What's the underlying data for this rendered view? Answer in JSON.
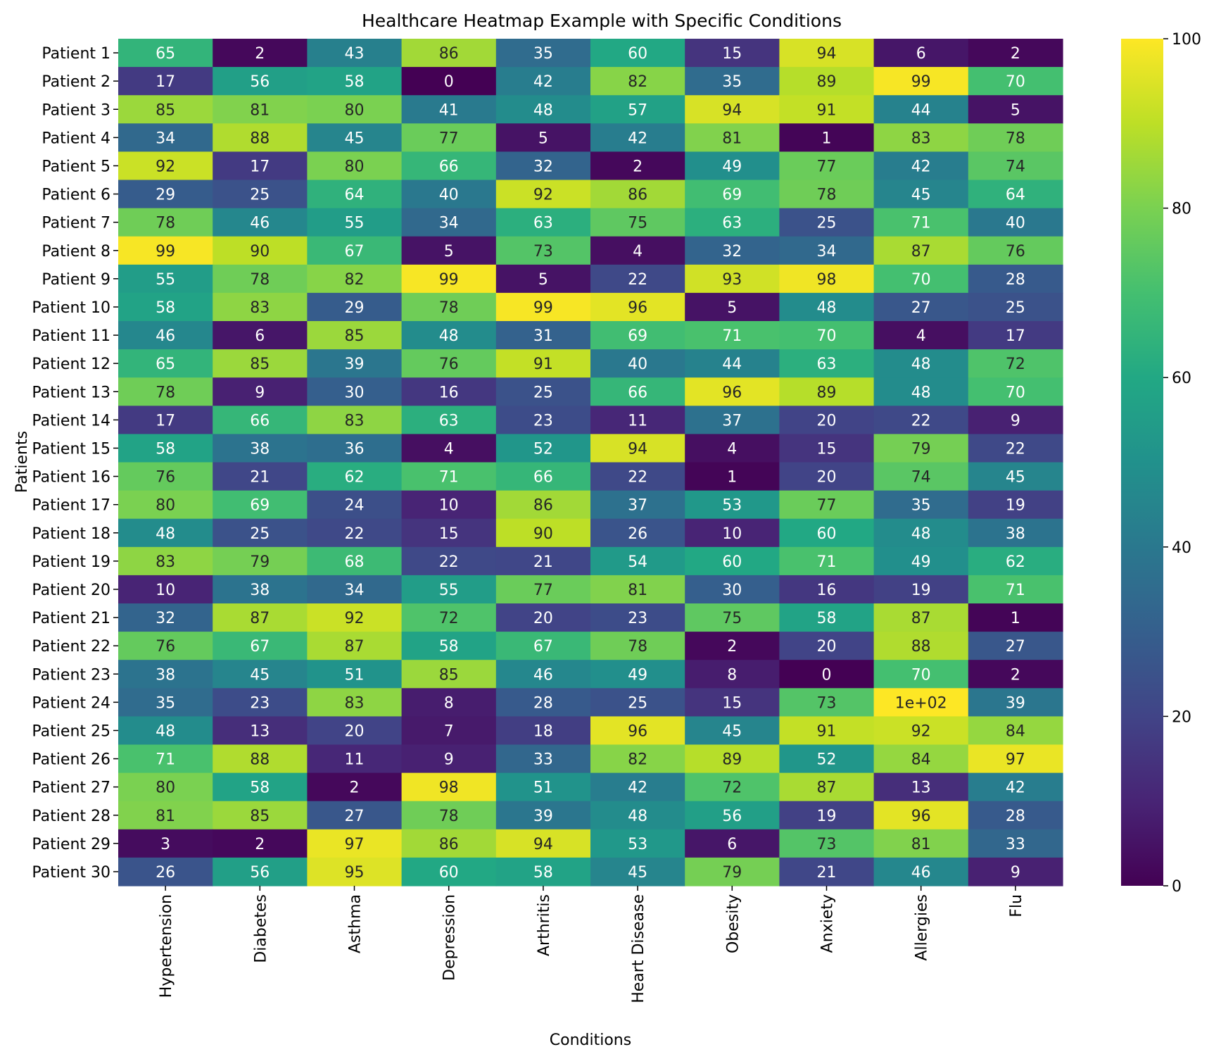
{
  "chart_data": {
    "type": "heatmap",
    "title": "Healthcare Heatmap Example with Specific Conditions",
    "xlabel": "Conditions",
    "ylabel": "Patients",
    "colormap": "viridis",
    "value_range": [
      0,
      100
    ],
    "colorbar_ticks": [
      0,
      20,
      40,
      60,
      80,
      100
    ],
    "grid": false,
    "colorbar_position": "right",
    "columns": [
      "Hypertension",
      "Diabetes",
      "Asthma",
      "Depression",
      "Arthritis",
      "Heart Disease",
      "Obesity",
      "Anxiety",
      "Allergies",
      "Flu"
    ],
    "rows": [
      "Patient 1",
      "Patient 2",
      "Patient 3",
      "Patient 4",
      "Patient 5",
      "Patient 6",
      "Patient 7",
      "Patient 8",
      "Patient 9",
      "Patient 10",
      "Patient 11",
      "Patient 12",
      "Patient 13",
      "Patient 14",
      "Patient 15",
      "Patient 16",
      "Patient 17",
      "Patient 18",
      "Patient 19",
      "Patient 20",
      "Patient 21",
      "Patient 22",
      "Patient 23",
      "Patient 24",
      "Patient 25",
      "Patient 26",
      "Patient 27",
      "Patient 28",
      "Patient 29",
      "Patient 30"
    ],
    "values": [
      [
        65,
        2,
        43,
        86,
        35,
        60,
        15,
        94,
        6,
        2
      ],
      [
        17,
        56,
        58,
        0,
        42,
        82,
        35,
        89,
        99,
        70
      ],
      [
        85,
        81,
        80,
        41,
        48,
        57,
        94,
        91,
        44,
        5
      ],
      [
        34,
        88,
        45,
        77,
        5,
        42,
        81,
        1,
        83,
        78
      ],
      [
        92,
        17,
        80,
        66,
        32,
        2,
        49,
        77,
        42,
        74
      ],
      [
        29,
        25,
        64,
        40,
        92,
        86,
        69,
        78,
        45,
        64
      ],
      [
        78,
        46,
        55,
        34,
        63,
        75,
        63,
        25,
        71,
        40
      ],
      [
        99,
        90,
        67,
        5,
        73,
        4,
        32,
        34,
        87,
        76
      ],
      [
        55,
        78,
        82,
        99,
        5,
        22,
        93,
        98,
        70,
        28
      ],
      [
        58,
        83,
        29,
        78,
        99,
        96,
        5,
        48,
        27,
        25
      ],
      [
        46,
        6,
        85,
        48,
        31,
        69,
        71,
        70,
        4,
        17
      ],
      [
        65,
        85,
        39,
        76,
        91,
        40,
        44,
        63,
        48,
        72
      ],
      [
        78,
        9,
        30,
        16,
        25,
        66,
        96,
        89,
        48,
        70
      ],
      [
        17,
        66,
        83,
        63,
        23,
        11,
        37,
        20,
        22,
        9
      ],
      [
        58,
        38,
        36,
        4,
        52,
        94,
        4,
        15,
        79,
        22
      ],
      [
        76,
        21,
        62,
        71,
        66,
        22,
        1,
        20,
        74,
        45
      ],
      [
        80,
        69,
        24,
        10,
        86,
        37,
        53,
        77,
        35,
        19
      ],
      [
        48,
        25,
        22,
        15,
        90,
        26,
        10,
        60,
        48,
        38
      ],
      [
        83,
        79,
        68,
        22,
        21,
        54,
        60,
        71,
        49,
        62
      ],
      [
        10,
        38,
        34,
        55,
        77,
        81,
        30,
        16,
        19,
        71
      ],
      [
        32,
        87,
        92,
        72,
        20,
        23,
        75,
        58,
        87,
        1
      ],
      [
        76,
        67,
        87,
        58,
        67,
        78,
        2,
        20,
        88,
        27
      ],
      [
        38,
        45,
        51,
        85,
        46,
        49,
        8,
        0,
        70,
        2
      ],
      [
        35,
        23,
        83,
        8,
        28,
        25,
        15,
        73,
        100,
        39
      ],
      [
        48,
        13,
        20,
        7,
        18,
        96,
        45,
        91,
        92,
        84
      ],
      [
        71,
        88,
        11,
        9,
        33,
        82,
        89,
        52,
        84,
        97
      ],
      [
        80,
        58,
        2,
        98,
        51,
        42,
        72,
        87,
        13,
        42
      ],
      [
        81,
        85,
        27,
        78,
        39,
        48,
        56,
        19,
        96,
        28
      ],
      [
        3,
        2,
        97,
        86,
        94,
        53,
        6,
        73,
        81,
        33
      ],
      [
        26,
        56,
        95,
        60,
        58,
        45,
        79,
        21,
        46,
        9
      ]
    ],
    "annotation_overrides": [
      {
        "row": 23,
        "col": 8,
        "text": "1e+02"
      }
    ]
  }
}
